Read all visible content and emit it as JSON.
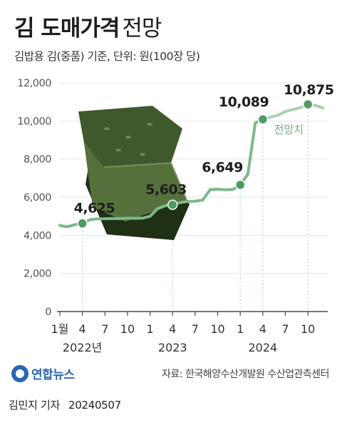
{
  "header": {
    "title": "김 도매가격",
    "title_suffix": "전망",
    "subtitle": "김밥용 김(중품) 기준, 단위: 원(100장 당)"
  },
  "footer": {
    "logo_text": "연합뉴스",
    "source": "자료: 한국해양수산개발원 수산업관측센터",
    "reporter": "김민지 기자",
    "date": "20240507"
  },
  "colors": {
    "line": "#7db88a",
    "forecast_line": "#a9d2b0",
    "marker": "#4e9a62",
    "grid": "#e6e6e6",
    "axis": "#4a4a4a",
    "seaweed": "#3e5a2c"
  },
  "chart_data": {
    "type": "line",
    "title": "김 도매가격",
    "ylim": [
      0,
      12000
    ],
    "yticks": [
      0,
      2000,
      4000,
      6000,
      8000,
      10000,
      12000
    ],
    "ytick_labels": [
      "0",
      "2,000",
      "4,000",
      "6,000",
      "8,000",
      "10,000",
      "12,000"
    ],
    "xticks": [
      {
        "month_index": 0,
        "label": "1월"
      },
      {
        "month_index": 3,
        "label": "4"
      },
      {
        "month_index": 6,
        "label": "7"
      },
      {
        "month_index": 9,
        "label": "10"
      },
      {
        "month_index": 12,
        "label": "1"
      },
      {
        "month_index": 15,
        "label": "4"
      },
      {
        "month_index": 18,
        "label": "7"
      },
      {
        "month_index": 21,
        "label": "10"
      },
      {
        "month_index": 24,
        "label": "1"
      },
      {
        "month_index": 27,
        "label": "4"
      },
      {
        "month_index": 30,
        "label": "7"
      },
      {
        "month_index": 33,
        "label": "10"
      }
    ],
    "year_labels": [
      {
        "month_index": 3,
        "label": "2022년"
      },
      {
        "month_index": 15,
        "label": "2023"
      },
      {
        "month_index": 27,
        "label": "2024"
      }
    ],
    "forecast_label": "전망치",
    "series": [
      {
        "role": "actual",
        "values": [
          [
            0,
            4520
          ],
          [
            1,
            4450
          ],
          [
            2,
            4560
          ],
          [
            3,
            4625
          ],
          [
            4,
            4820
          ],
          [
            5,
            4860
          ],
          [
            6,
            4870
          ],
          [
            7,
            4880
          ],
          [
            8,
            4880
          ],
          [
            9,
            4900
          ],
          [
            10,
            4890
          ],
          [
            11,
            4900
          ],
          [
            12,
            5000
          ],
          [
            13,
            5400
          ],
          [
            14,
            5560
          ],
          [
            15,
            5603
          ],
          [
            16,
            5720
          ],
          [
            17,
            5780
          ],
          [
            18,
            5790
          ],
          [
            19,
            5850
          ],
          [
            20,
            6400
          ],
          [
            21,
            6420
          ],
          [
            22,
            6390
          ],
          [
            23,
            6400
          ],
          [
            24,
            6649
          ],
          [
            25,
            7200
          ],
          [
            26,
            9900
          ],
          [
            27,
            10089
          ]
        ]
      },
      {
        "role": "forecast",
        "values": [
          [
            27,
            10089
          ],
          [
            28,
            10200
          ],
          [
            29,
            10300
          ],
          [
            30,
            10500
          ],
          [
            31,
            10600
          ],
          [
            32,
            10700
          ],
          [
            33,
            10875
          ],
          [
            34,
            10820
          ],
          [
            35,
            10680
          ]
        ]
      }
    ],
    "annotations": [
      {
        "month_index": 3,
        "value": 4625,
        "label": "4,625"
      },
      {
        "month_index": 15,
        "value": 5603,
        "label": "5,603"
      },
      {
        "month_index": 24,
        "value": 6649,
        "label": "6,649"
      },
      {
        "month_index": 27,
        "value": 10089,
        "label": "10,089"
      },
      {
        "month_index": 33,
        "value": 10875,
        "label": "10,875"
      }
    ]
  }
}
